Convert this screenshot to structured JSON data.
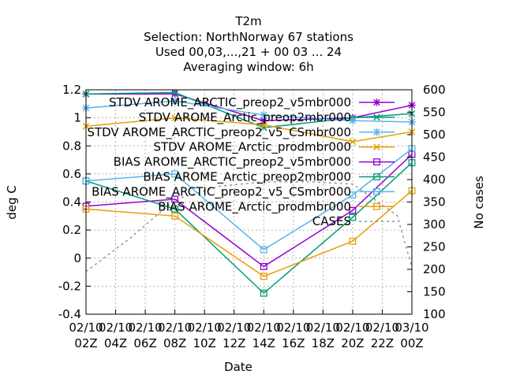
{
  "chart_data": {
    "type": "line",
    "title_lines": [
      "T2m",
      "Selection: NorthNorway     67 stations",
      "Used  00,03,...,21  + 00 03 ... 24",
      "Averaging window:  6h"
    ],
    "xlabel": "Date",
    "ylabel": "deg C",
    "y2label": "No cases",
    "xlim": [
      0,
      22
    ],
    "ylim": [
      -0.4,
      1.2
    ],
    "y2lim": [
      100,
      600
    ],
    "grid": true,
    "legend_position": "top-right",
    "x_ticks": [
      {
        "top": "02/10",
        "bottom": "02Z"
      },
      {
        "top": "02/10",
        "bottom": "04Z"
      },
      {
        "top": "02/10",
        "bottom": "06Z"
      },
      {
        "top": "02/10",
        "bottom": "08Z"
      },
      {
        "top": "02/10",
        "bottom": "10Z"
      },
      {
        "top": "02/10",
        "bottom": "12Z"
      },
      {
        "top": "02/10",
        "bottom": "14Z"
      },
      {
        "top": "02/10",
        "bottom": "16Z"
      },
      {
        "top": "02/10",
        "bottom": "18Z"
      },
      {
        "top": "02/10",
        "bottom": "20Z"
      },
      {
        "top": "02/10",
        "bottom": "22Z"
      },
      {
        "top": "03/10",
        "bottom": "00Z"
      }
    ],
    "y_ticks": [
      "-0.4",
      "-0.2",
      "0",
      "0.2",
      "0.4",
      "0.6",
      "0.8",
      "1",
      "1.2"
    ],
    "y2_ticks": [
      "100",
      "150",
      "200",
      "250",
      "300",
      "350",
      "400",
      "450",
      "500",
      "550",
      "600"
    ],
    "series": [
      {
        "name": "STDV AROME_ARCTIC_preop2_v5mbr000",
        "color": "#9400d3",
        "marker": "asterisk",
        "axis": "y",
        "x": [
          0,
          6,
          12,
          18,
          22
        ],
        "y": [
          1.17,
          1.17,
          0.98,
          1.0,
          1.09
        ]
      },
      {
        "name": "STDV AROME_Arctic_preop2mbr000",
        "color": "#009e73",
        "marker": "x",
        "axis": "y",
        "x": [
          0,
          6,
          12,
          18,
          22
        ],
        "y": [
          1.17,
          1.18,
          0.93,
          1.0,
          1.03
        ]
      },
      {
        "name": "STDV AROME_ARCTIC_preop2_v5_CSmbr000",
        "color": "#56b4e9",
        "marker": "asterisk",
        "axis": "y",
        "x": [
          0,
          6,
          12,
          18,
          22
        ],
        "y": [
          1.07,
          1.12,
          1.02,
          0.98,
          0.97
        ]
      },
      {
        "name": "STDV AROME_Arctic_prodmbr000",
        "color": "#e69f00",
        "marker": "x",
        "axis": "y",
        "x": [
          0,
          6,
          12,
          18,
          22
        ],
        "y": [
          0.94,
          1.0,
          0.95,
          0.83,
          0.9
        ]
      },
      {
        "name": "BIAS AROME_ARCTIC_preop2_v5mbr000",
        "color": "#9400d3",
        "marker": "square",
        "axis": "y",
        "x": [
          0,
          6,
          12,
          18,
          22
        ],
        "y": [
          0.37,
          0.42,
          -0.06,
          0.34,
          0.74
        ]
      },
      {
        "name": "BIAS AROME_Arctic_preop2mbr000",
        "color": "#009e73",
        "marker": "square",
        "axis": "y",
        "x": [
          0,
          6,
          12,
          18,
          22
        ],
        "y": [
          0.55,
          0.35,
          -0.25,
          0.29,
          0.68
        ]
      },
      {
        "name": "BIAS AROME_ARCTIC_preop2_v5_CSmbr000",
        "color": "#56b4e9",
        "marker": "square",
        "axis": "y",
        "x": [
          0,
          6,
          12,
          18,
          22
        ],
        "y": [
          0.55,
          0.6,
          0.06,
          0.45,
          0.78
        ]
      },
      {
        "name": "BIAS AROME_Arctic_prodmbr000",
        "color": "#e69f00",
        "marker": "square",
        "axis": "y",
        "x": [
          0,
          6,
          12,
          18,
          22
        ],
        "y": [
          0.35,
          0.3,
          -0.13,
          0.12,
          0.48
        ]
      },
      {
        "name": "CASES",
        "color": "#888888",
        "marker": "none",
        "dashed": true,
        "axis": "y2",
        "x": [
          0,
          3,
          6,
          9,
          12,
          15,
          18,
          21,
          22
        ],
        "y": [
          195,
          270,
          355,
          385,
          395,
          395,
          390,
          320,
          205
        ]
      }
    ]
  }
}
